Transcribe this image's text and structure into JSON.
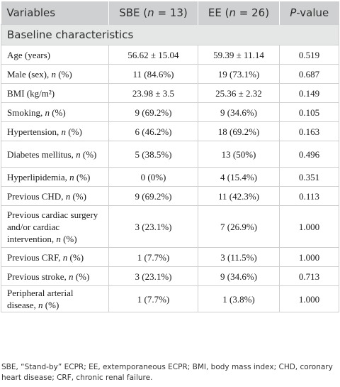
{
  "header": {
    "variables": "Variables",
    "sbe_prefix": "SBE (",
    "sbe_n": "n",
    "sbe_suffix": " = 13)",
    "ee_prefix": "EE (",
    "ee_n": "n",
    "ee_suffix": " = 26)",
    "p_italic": "P",
    "p_suffix": "-value"
  },
  "section_title": "Baseline characteristics",
  "rows": [
    {
      "pre": "Age (years)",
      "it": "",
      "post": "",
      "sbe": "56.62 ± 15.04",
      "ee": "59.39 ± 11.14",
      "p": "0.519"
    },
    {
      "pre": "Male (sex), ",
      "it": "n",
      "post": " (%)",
      "sbe": "11 (84.6%)",
      "ee": "19 (73.1%)",
      "p": "0.687"
    },
    {
      "pre": "BMI (kg/m²)",
      "it": "",
      "post": "",
      "sbe": "23.98 ± 3.5",
      "ee": "25.36 ± 2.32",
      "p": "0.149"
    },
    {
      "pre": "Smoking, ",
      "it": "n",
      "post": " (%)",
      "sbe": "9 (69.2%)",
      "ee": "9 (34.6%)",
      "p": "0.105"
    },
    {
      "pre": "Hypertension, ",
      "it": "n",
      "post": " (%)",
      "sbe": "6 (46.2%)",
      "ee": "18 (69.2%)",
      "p": "0.163"
    },
    {
      "pre": "Diabetes mellitus, ",
      "it": "n",
      "post": " (%)",
      "sbe": "5 (38.5%)",
      "ee": "13 (50%)",
      "p": "0.496"
    },
    {
      "pre": "Hyperlipidemia, ",
      "it": "n",
      "post": " (%)",
      "sbe": "0 (0%)",
      "ee": "4 (15.4%)",
      "p": "0.351"
    },
    {
      "pre": "Previous CHD, ",
      "it": "n",
      "post": " (%)",
      "sbe": "9 (69.2%)",
      "ee": "11 (42.3%)",
      "p": "0.113"
    },
    {
      "pre": "Previous cardiac surgery and/or cardiac intervention, ",
      "it": "n",
      "post": " (%)",
      "sbe": "3 (23.1%)",
      "ee": "7 (26.9%)",
      "p": "1.000"
    },
    {
      "pre": "Previous CRF, ",
      "it": "n",
      "post": " (%)",
      "sbe": "1 (7.7%)",
      "ee": "3 (11.5%)",
      "p": "1.000"
    },
    {
      "pre": "Previous stroke, ",
      "it": "n",
      "post": " (%)",
      "sbe": "3 (23.1%)",
      "ee": "9 (34.6%)",
      "p": "0.713"
    },
    {
      "pre": "Peripheral arterial disease, ",
      "it": "n",
      "post": " (%)",
      "sbe": "1 (7.7%)",
      "ee": "1 (3.8%)",
      "p": "1.000"
    }
  ],
  "footnote": "SBE, “Stand-by” ECPR; EE, extemporaneous ECPR; BMI, body mass index; CHD, coronary heart disease; CRF, chronic renal failure."
}
